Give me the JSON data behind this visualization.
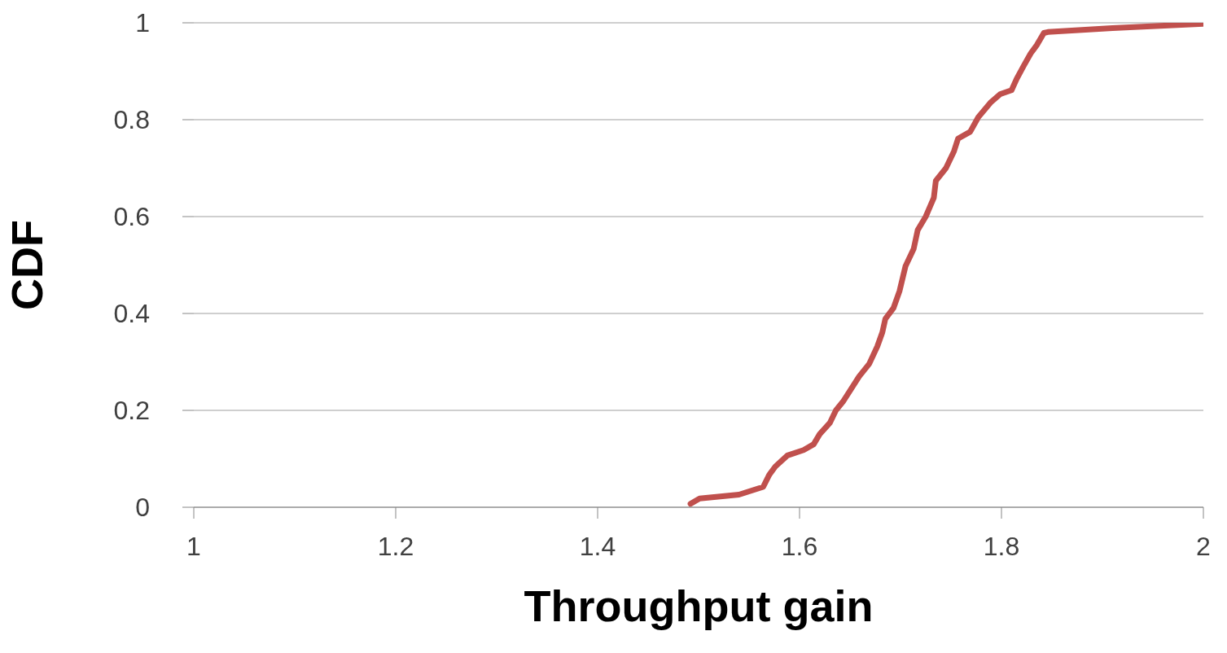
{
  "chart_data": {
    "type": "line",
    "xlabel": "Throughput  gain",
    "ylabel": "CDF",
    "xlim": [
      1,
      2
    ],
    "xticks": [
      1,
      1.2,
      1.4,
      1.6,
      1.8,
      2
    ],
    "ylim": [
      0,
      1
    ],
    "yticks": [
      0,
      0.2,
      0.4,
      0.6,
      0.8,
      1
    ],
    "grid": "y",
    "legend": false,
    "marker": "none",
    "line_style": "solid",
    "series": [
      {
        "color": "#c0504d",
        "x": [
          1.492,
          1.501,
          1.54,
          1.564,
          1.57,
          1.576,
          1.588,
          1.604,
          1.614,
          1.62,
          1.63,
          1.636,
          1.643,
          1.651,
          1.659,
          1.669,
          1.677,
          1.682,
          1.685,
          1.693,
          1.699,
          1.705,
          1.713,
          1.717,
          1.725,
          1.733,
          1.735,
          1.745,
          1.753,
          1.757,
          1.769,
          1.777,
          1.789,
          1.799,
          1.81,
          1.815,
          1.822,
          1.829,
          1.835,
          1.842,
          1.846,
          1.91,
          2.0
        ],
        "values": [
          0.007,
          0.018,
          0.026,
          0.042,
          0.067,
          0.084,
          0.107,
          0.118,
          0.13,
          0.151,
          0.174,
          0.2,
          0.218,
          0.244,
          0.27,
          0.296,
          0.332,
          0.361,
          0.389,
          0.411,
          0.446,
          0.498,
          0.533,
          0.572,
          0.6,
          0.639,
          0.674,
          0.7,
          0.735,
          0.761,
          0.775,
          0.805,
          0.835,
          0.853,
          0.861,
          0.884,
          0.911,
          0.937,
          0.954,
          0.979,
          0.981,
          0.989,
          0.998
        ]
      }
    ]
  }
}
